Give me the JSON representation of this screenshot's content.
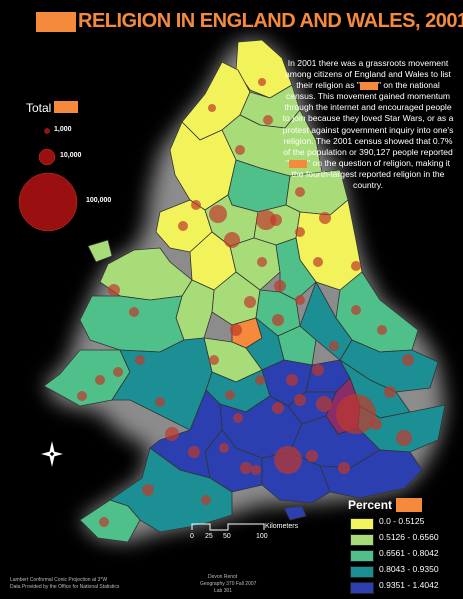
{
  "title": "RELIGION IN ENGLAND AND WALES, 2001",
  "narrative": {
    "part1": "In 2001 there was a grassroots movement among citizens of England and Wales to list their religion as \"",
    "part2": "\" on the national census. This movement gained momentum through the internet and encouraged people to join because they loved Star Wars, or as a protest against government inquiry into one's religion. The 2001 census showed that 0.7% of the population or 390,127 people reported \"",
    "part3": "\" on the question of religion, making it the fourth-largest reported religion in the country."
  },
  "size_legend": {
    "title": "Total",
    "entries": [
      {
        "label": "1,000",
        "value": 1000
      },
      {
        "label": "10,000",
        "value": 10000
      },
      {
        "label": "100,000",
        "value": 100000
      }
    ]
  },
  "percent_legend": {
    "title": "Percent",
    "classes": [
      {
        "label": "0.0 - 0.5125",
        "color": "#f2f25a"
      },
      {
        "label": "0.5126 - 0.6560",
        "color": "#a8dc78"
      },
      {
        "label": "0.6561 - 0.8042",
        "color": "#4fc08a"
      },
      {
        "label": "0.8043 - 0.9350",
        "color": "#1b8f93"
      },
      {
        "label": "0.9351 - 1.4042",
        "color": "#2b3fb0"
      }
    ]
  },
  "scale_bar": {
    "unit": "Kilometers",
    "ticks": [
      "0",
      "25",
      "50",
      "100"
    ]
  },
  "north_arrow_icon": "north-arrow-icon",
  "footer": {
    "projection": "Lambert Conformal Conic Projection at 3°W",
    "source": "Data Provided by the Office for National Statistics",
    "author": "Devon Renot",
    "course": "Geography 370 Fall 2007",
    "lab": "Lab 301"
  },
  "colors": {
    "title": "#f58a3c",
    "redaction": "#f58a3c",
    "symbol": "#c0392b",
    "background": "#000000"
  }
}
